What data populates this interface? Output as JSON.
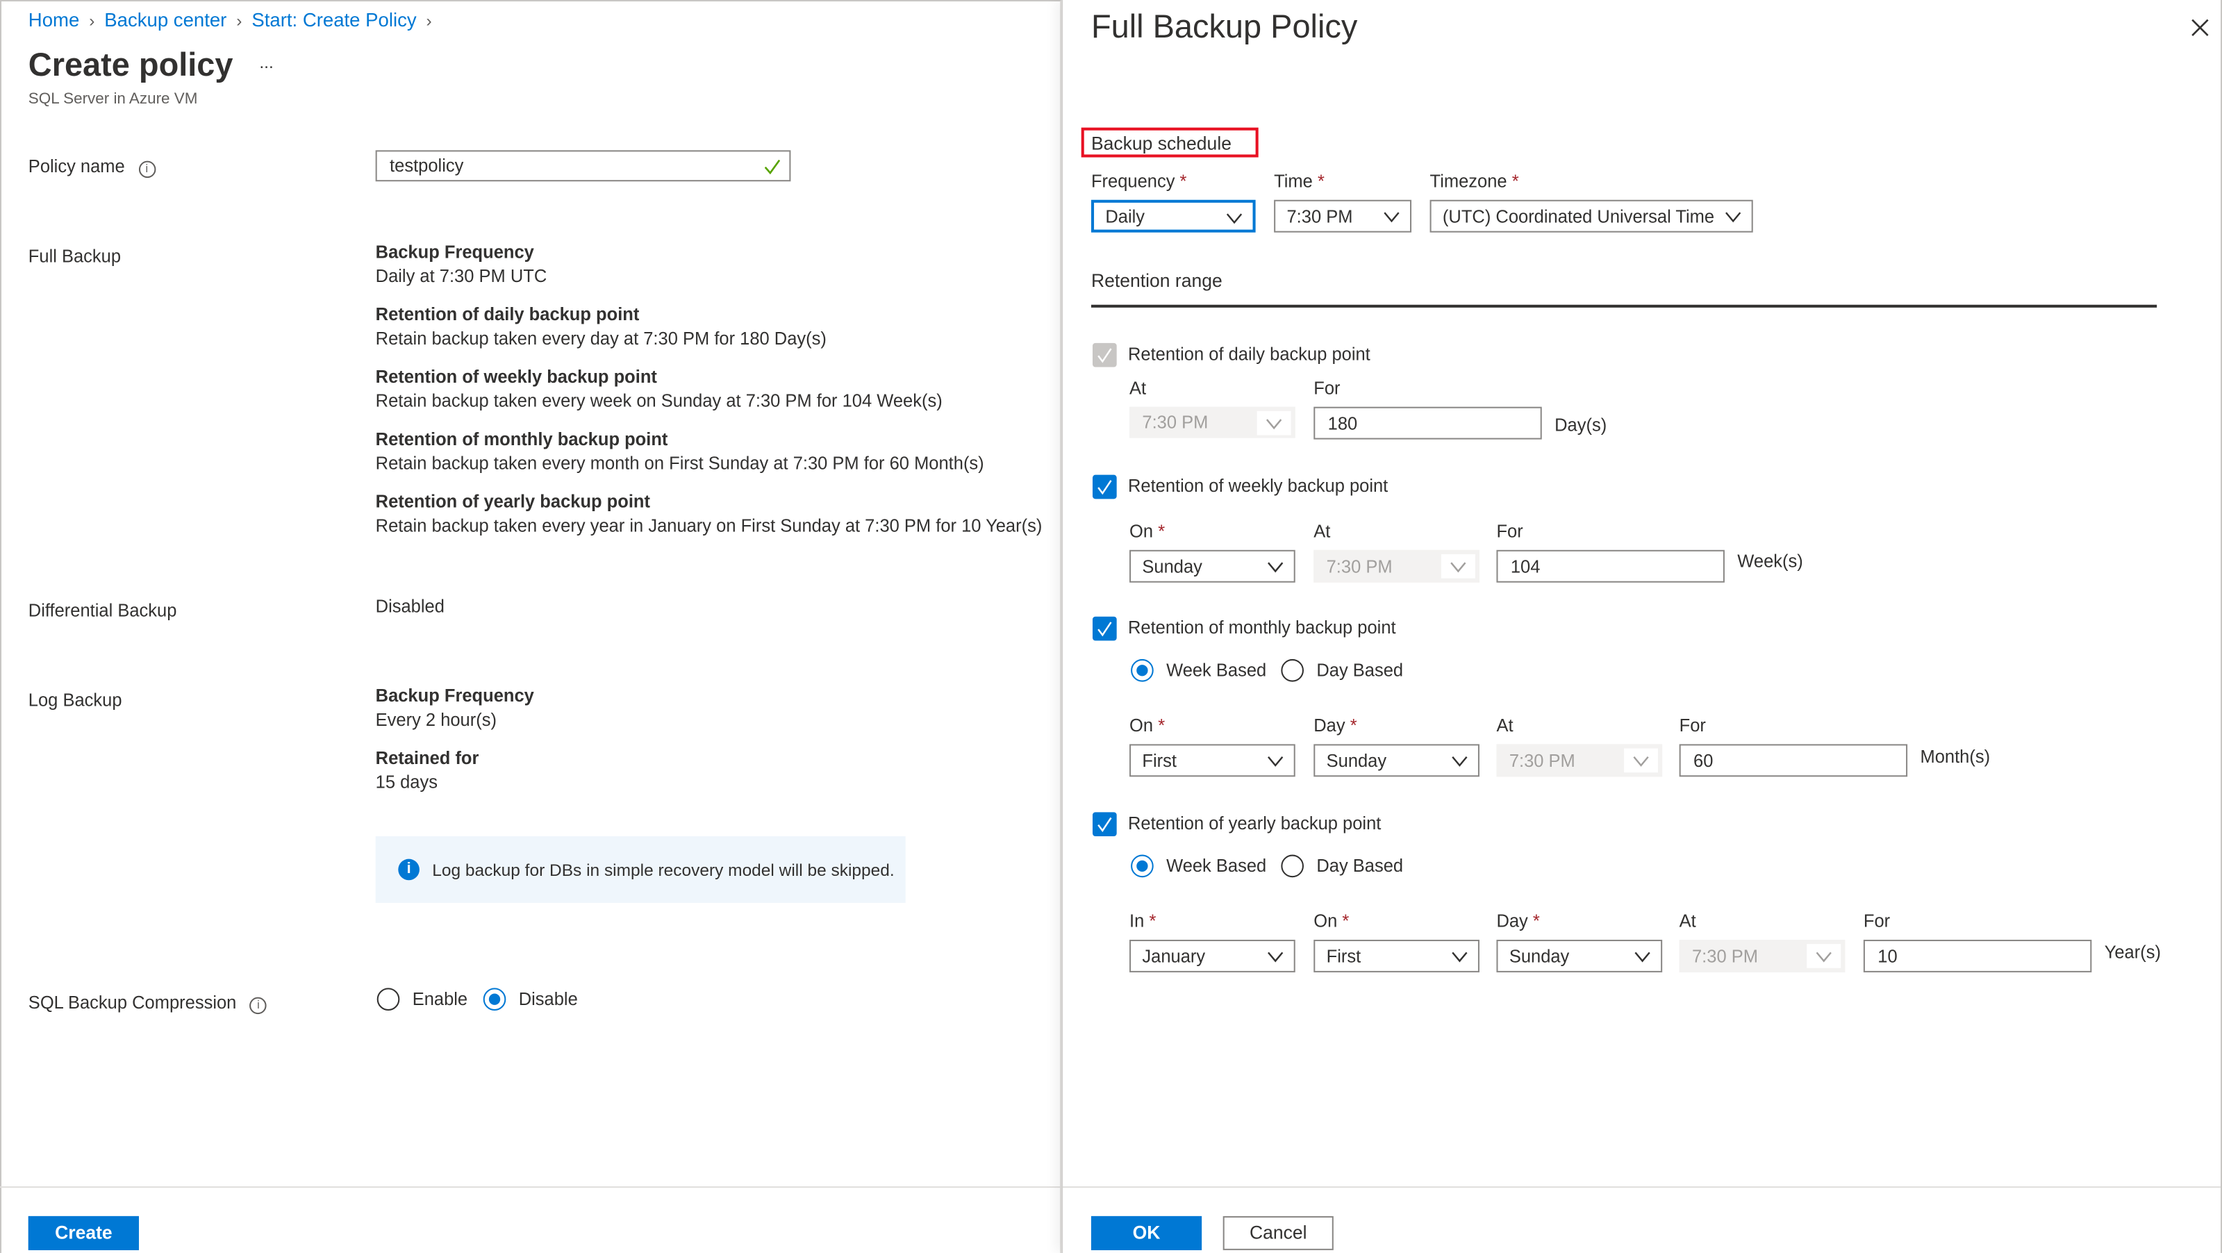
{
  "breadcrumb": [
    {
      "label": "Home"
    },
    {
      "label": "Backup center"
    },
    {
      "label": "Start: Create Policy"
    }
  ],
  "left": {
    "title": "Create policy",
    "more": "...",
    "subtitle": "SQL Server in Azure VM",
    "policy_name_label": "Policy name",
    "policy_name_value": "testpolicy",
    "full_backup": {
      "label": "Full Backup",
      "items": [
        {
          "heading": "Backup Frequency",
          "text": "Daily at 7:30 PM UTC"
        },
        {
          "heading": "Retention of daily backup point",
          "text": "Retain backup taken every day at 7:30 PM for 180 Day(s)"
        },
        {
          "heading": "Retention of weekly backup point",
          "text": "Retain backup taken every week on Sunday at 7:30 PM for 104 Week(s)"
        },
        {
          "heading": "Retention of monthly backup point",
          "text": "Retain backup taken every month on First Sunday at 7:30 PM for 60 Month(s)"
        },
        {
          "heading": "Retention of yearly backup point",
          "text": "Retain backup taken every year in January on First Sunday at 7:30 PM for 10 Year(s)"
        }
      ]
    },
    "differential": {
      "label": "Differential Backup",
      "value": "Disabled"
    },
    "log": {
      "label": "Log Backup",
      "items": [
        {
          "heading": "Backup Frequency",
          "text": "Every 2 hour(s)"
        },
        {
          "heading": "Retained for",
          "text": "15 days"
        }
      ],
      "info": "Log backup for DBs in simple recovery model will be skipped."
    },
    "compression": {
      "label": "SQL Backup Compression",
      "options": [
        "Enable",
        "Disable"
      ],
      "selected": "Disable"
    },
    "create_label": "Create"
  },
  "right": {
    "title": "Full Backup Policy",
    "schedule_heading": "Backup schedule",
    "frequency": {
      "label": "Frequency",
      "value": "Daily"
    },
    "time": {
      "label": "Time",
      "value": "7:30 PM"
    },
    "timezone": {
      "label": "Timezone",
      "value": "(UTC) Coordinated Universal Time"
    },
    "retention_heading": "Retention range",
    "daily": {
      "label": "Retention of daily backup point",
      "checked": true,
      "disabled": true,
      "at_label": "At",
      "at": "7:30 PM",
      "for_label": "For",
      "for": "180",
      "unit": "Day(s)"
    },
    "weekly": {
      "label": "Retention of weekly backup point",
      "checked": true,
      "on_label": "On",
      "on": "Sunday",
      "at_label": "At",
      "at": "7:30 PM",
      "for_label": "For",
      "for": "104",
      "unit": "Week(s)"
    },
    "monthly": {
      "label": "Retention of monthly backup point",
      "checked": true,
      "options": [
        "Week Based",
        "Day Based"
      ],
      "selected": "Week Based",
      "on_label": "On",
      "on": "First",
      "day_label": "Day",
      "day": "Sunday",
      "at_label": "At",
      "at": "7:30 PM",
      "for_label": "For",
      "for": "60",
      "unit": "Month(s)"
    },
    "yearly": {
      "label": "Retention of yearly backup point",
      "checked": true,
      "options": [
        "Week Based",
        "Day Based"
      ],
      "selected": "Week Based",
      "in_label": "In",
      "in": "January",
      "on_label": "On",
      "on": "First",
      "day_label": "Day",
      "day": "Sunday",
      "at_label": "At",
      "at": "7:30 PM",
      "for_label": "For",
      "for": "10",
      "unit": "Year(s)"
    },
    "ok_label": "OK",
    "cancel_label": "Cancel",
    "required_mark": "*"
  },
  "colors": {
    "accent": "#0078d4",
    "highlight_box": "#e81123",
    "required": "#a4262c",
    "info_bg": "#eff6fc",
    "success": "#57a300"
  }
}
